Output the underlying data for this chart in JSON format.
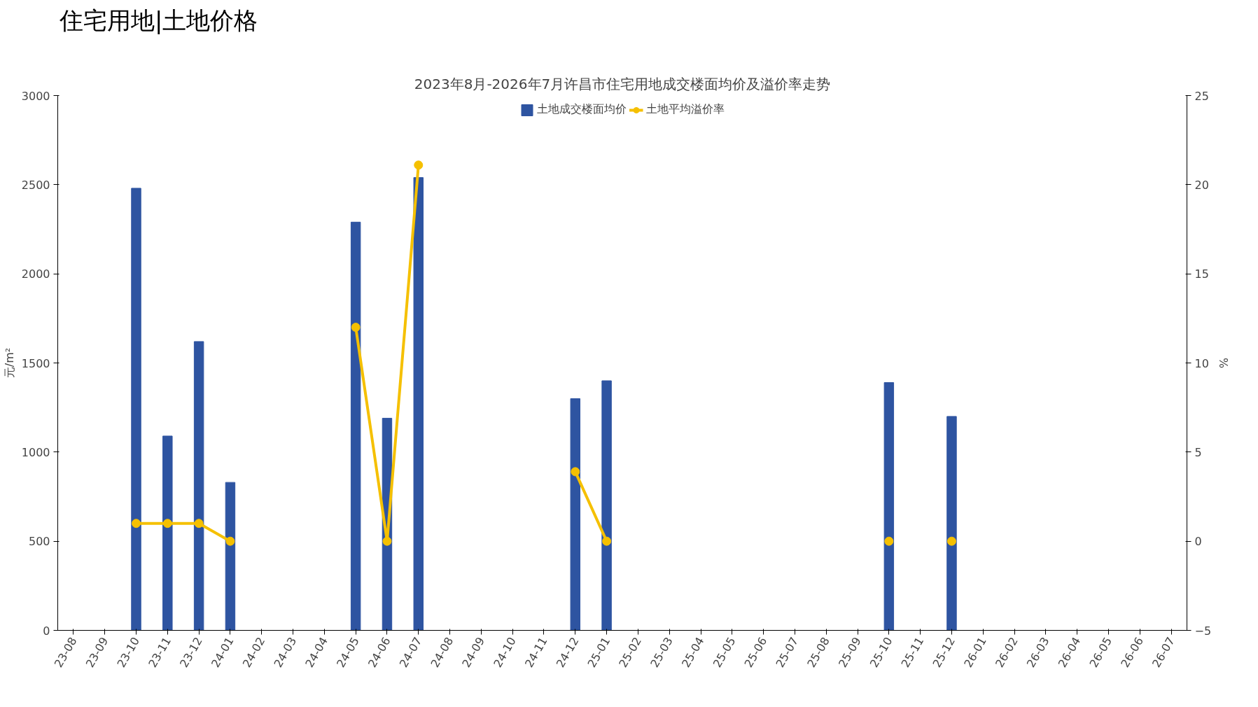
{
  "chart_data": {
    "type": "bar",
    "title": "住宅用地|土地价格",
    "subtitle": "2023年8月-2026年7月许昌市住宅用地成交楼面均价及溢价率走势",
    "ylabel": "元/m²",
    "y2label": "%",
    "categories": [
      "23-08",
      "23-09",
      "23-10",
      "23-11",
      "23-12",
      "24-01",
      "24-02",
      "24-03",
      "24-04",
      "24-05",
      "24-06",
      "24-07",
      "24-08",
      "24-09",
      "24-10",
      "24-11",
      "24-12",
      "25-01",
      "25-02",
      "25-03",
      "25-04",
      "25-05",
      "25-06",
      "25-07",
      "25-08",
      "25-09",
      "25-10",
      "25-11",
      "25-12",
      "26-01",
      "26-02",
      "26-03",
      "26-04",
      "26-05",
      "26-06",
      "26-07"
    ],
    "series": [
      {
        "name": "土地成交楼面均价",
        "color": "#2e54a1",
        "values": [
          null,
          null,
          2480,
          1090,
          1620,
          830,
          null,
          null,
          null,
          2290,
          1190,
          2540,
          null,
          null,
          null,
          null,
          1300,
          1400,
          null,
          null,
          null,
          null,
          null,
          null,
          null,
          null,
          1390,
          null,
          1200,
          null,
          null,
          null,
          null,
          null,
          null,
          null
        ]
      },
      {
        "name": "土地平均溢价率",
        "type": "line",
        "axis": "y2",
        "color": "#f5c000",
        "values": [
          null,
          null,
          1.0,
          1.0,
          1.0,
          0,
          null,
          null,
          null,
          12.0,
          0,
          21.1,
          null,
          null,
          null,
          null,
          3.9,
          0,
          null,
          null,
          null,
          null,
          null,
          null,
          null,
          null,
          0,
          null,
          0,
          null,
          null,
          null,
          null,
          null,
          null,
          null
        ]
      }
    ],
    "ylim": [
      0,
      3000
    ],
    "yticks": [
      0,
      500,
      1000,
      1500,
      2000,
      2500,
      3000
    ],
    "y2lim": [
      -5,
      25
    ],
    "y2ticks": [
      -5,
      0,
      5,
      10,
      15,
      20,
      25
    ],
    "legend": "top",
    "grid": false,
    "marker": "circle",
    "line_style": "solid"
  }
}
